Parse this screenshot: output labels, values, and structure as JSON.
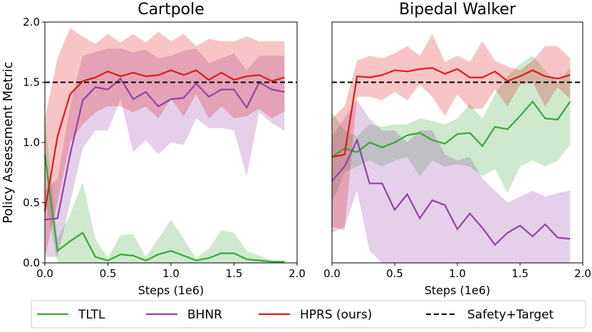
{
  "chart_data": [
    {
      "type": "line",
      "title": "Cartpole",
      "x_label": "Steps (1e6)",
      "y_label": "Policy Assessment Metric",
      "x": [
        0,
        0.1,
        0.2,
        0.3,
        0.4,
        0.5,
        0.6,
        0.7,
        0.8,
        0.9,
        1.0,
        1.1,
        1.2,
        1.3,
        1.4,
        1.5,
        1.6,
        1.7,
        1.8,
        1.9
      ],
      "xlim": [
        0,
        2.0
      ],
      "ylim": [
        0,
        2.0
      ],
      "xticks": [
        {
          "value": 0,
          "label": "0.0"
        },
        {
          "value": 0.5,
          "label": "0.5"
        },
        {
          "value": 1.0,
          "label": "1.0"
        },
        {
          "value": 1.5,
          "label": "1.5"
        },
        {
          "value": 2.0,
          "label": "2.0"
        }
      ],
      "yticks": [
        {
          "value": 0,
          "label": "0.0"
        },
        {
          "value": 0.5,
          "label": "0.5"
        },
        {
          "value": 1.0,
          "label": "1.0"
        },
        {
          "value": 1.5,
          "label": "1.5"
        },
        {
          "value": 2.0,
          "label": "2.0"
        }
      ],
      "reference_name": "Safety+Target",
      "reference_value": 1.5,
      "series": [
        {
          "name": "TLTL",
          "color": "#3aa63a",
          "values": [
            0.9,
            0.1,
            0.18,
            0.25,
            0.05,
            0.02,
            0.07,
            0.06,
            0.02,
            0.07,
            0.1,
            0.06,
            0.02,
            0.04,
            0.08,
            0.08,
            0.03,
            0.02,
            0.01,
            0.01
          ],
          "upper": [
            1.2,
            0.2,
            0.4,
            0.67,
            0.2,
            0.04,
            0.23,
            0.24,
            0.05,
            0.2,
            0.36,
            0.2,
            0.04,
            0.12,
            0.27,
            0.25,
            0.1,
            0.06,
            0.02,
            0.02
          ],
          "lower": [
            0.55,
            0,
            0,
            0,
            0,
            0,
            0,
            0,
            0,
            0,
            0,
            0,
            0,
            0,
            0,
            0,
            0,
            0,
            0,
            0
          ]
        },
        {
          "name": "BHNR",
          "color": "#9442a8",
          "values": [
            0.36,
            0.37,
            0.9,
            1.35,
            1.46,
            1.44,
            1.53,
            1.36,
            1.42,
            1.3,
            1.36,
            1.37,
            1.49,
            1.38,
            1.44,
            1.44,
            1.29,
            1.5,
            1.44,
            1.42
          ],
          "upper": [
            0.6,
            0.7,
            1.3,
            1.72,
            1.75,
            1.78,
            1.78,
            1.75,
            1.77,
            1.7,
            1.72,
            1.76,
            1.78,
            1.66,
            1.7,
            1.74,
            1.6,
            1.72,
            1.72,
            1.72
          ],
          "lower": [
            0.05,
            0.05,
            0.5,
            0.95,
            1.1,
            1.1,
            1.36,
            0.92,
            1.02,
            0.9,
            1.0,
            0.98,
            1.2,
            1.12,
            1.12,
            1.1,
            0.72,
            1.25,
            1.16,
            1.1
          ]
        },
        {
          "name": "HPRS (ours)",
          "color": "#e0191b",
          "values": [
            0.43,
            1.05,
            1.4,
            1.51,
            1.54,
            1.59,
            1.55,
            1.58,
            1.55,
            1.56,
            1.6,
            1.56,
            1.6,
            1.52,
            1.58,
            1.52,
            1.55,
            1.56,
            1.51,
            1.54
          ],
          "upper": [
            1.2,
            1.7,
            1.95,
            1.88,
            1.82,
            1.9,
            1.83,
            1.9,
            1.83,
            1.92,
            1.84,
            1.9,
            1.8,
            1.86,
            1.84,
            1.84,
            1.88,
            1.84,
            1.84,
            1.84
          ],
          "lower": [
            0.05,
            0.5,
            1.0,
            1.15,
            1.25,
            1.3,
            1.3,
            1.25,
            1.3,
            1.2,
            1.36,
            1.22,
            1.4,
            1.2,
            1.3,
            1.2,
            1.22,
            1.28,
            1.2,
            1.26
          ]
        }
      ]
    },
    {
      "type": "line",
      "title": "Bipedal Walker",
      "x_label": "Steps (1e6)",
      "x": [
        0,
        0.1,
        0.2,
        0.3,
        0.4,
        0.5,
        0.6,
        0.7,
        0.8,
        0.9,
        1.0,
        1.1,
        1.2,
        1.3,
        1.4,
        1.5,
        1.6,
        1.7,
        1.8,
        1.9
      ],
      "xlim": [
        0,
        2.0
      ],
      "ylim": [
        0,
        2.0
      ],
      "xticks": [
        {
          "value": 0,
          "label": "0.0"
        },
        {
          "value": 0.5,
          "label": "0.5"
        },
        {
          "value": 1.0,
          "label": "1.0"
        },
        {
          "value": 1.5,
          "label": "1.5"
        },
        {
          "value": 2.0,
          "label": "2.0"
        }
      ],
      "reference_value": 1.5,
      "series": [
        {
          "color": "#3aa63a",
          "values": [
            0.88,
            0.95,
            0.92,
            1.0,
            0.96,
            1.0,
            1.06,
            1.08,
            1.02,
            0.99,
            1.07,
            1.08,
            0.97,
            1.13,
            1.11,
            1.22,
            1.34,
            1.2,
            1.19,
            1.34
          ],
          "upper": [
            1.25,
            1.1,
            1.05,
            1.15,
            1.13,
            1.15,
            1.15,
            1.2,
            1.18,
            1.15,
            1.2,
            1.32,
            1.2,
            1.4,
            1.55,
            1.65,
            1.72,
            1.6,
            1.5,
            1.62
          ],
          "lower": [
            0.5,
            0.75,
            0.8,
            0.85,
            0.8,
            0.85,
            0.88,
            0.72,
            0.85,
            0.8,
            0.82,
            0.8,
            0.72,
            0.78,
            0.58,
            0.8,
            0.85,
            0.8,
            0.85,
            0.98
          ]
        },
        {
          "color": "#9442a8",
          "values": [
            0.68,
            0.8,
            1.02,
            0.66,
            0.66,
            0.44,
            0.57,
            0.37,
            0.52,
            0.48,
            0.28,
            0.41,
            0.29,
            0.15,
            0.25,
            0.31,
            0.22,
            0.32,
            0.21,
            0.2
          ],
          "upper": [
            1.05,
            1.2,
            1.35,
            1.2,
            1.1,
            1.1,
            1.0,
            1.1,
            1.1,
            0.9,
            0.85,
            0.88,
            0.7,
            0.6,
            0.5,
            0.55,
            0.6,
            0.55,
            0.58,
            0.6
          ],
          "lower": [
            0.25,
            0.3,
            0.6,
            0.1,
            0,
            0,
            0,
            0,
            0,
            0,
            0,
            0,
            0,
            0,
            0,
            0,
            0,
            0,
            0,
            0
          ]
        },
        {
          "color": "#e0191b",
          "values": [
            0.88,
            0.9,
            1.55,
            1.54,
            1.56,
            1.6,
            1.59,
            1.61,
            1.62,
            1.57,
            1.61,
            1.54,
            1.54,
            1.59,
            1.51,
            1.55,
            1.6,
            1.55,
            1.53,
            1.56
          ],
          "upper": [
            1.2,
            1.3,
            1.68,
            1.72,
            1.7,
            1.74,
            1.8,
            1.72,
            1.9,
            1.67,
            1.72,
            1.67,
            1.84,
            1.68,
            1.63,
            1.6,
            1.68,
            1.8,
            1.8,
            1.7
          ],
          "lower": [
            0.3,
            0.27,
            1.38,
            1.38,
            1.35,
            1.42,
            1.35,
            1.48,
            1.38,
            1.22,
            1.4,
            1.28,
            1.28,
            1.44,
            1.3,
            1.48,
            1.5,
            1.3,
            1.46,
            1.36
          ]
        }
      ]
    }
  ]
}
